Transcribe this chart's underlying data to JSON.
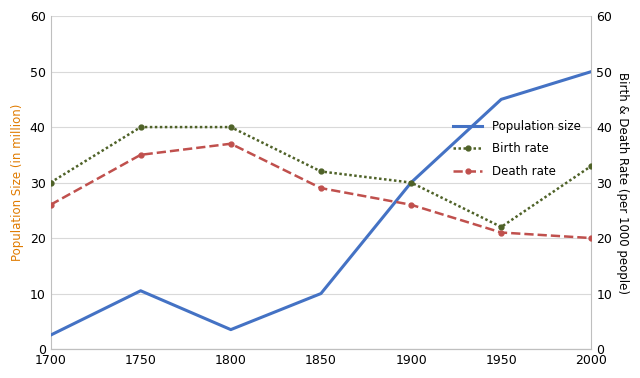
{
  "years": [
    1700,
    1750,
    1800,
    1850,
    1900,
    1950,
    2000
  ],
  "population": [
    2.5,
    10.5,
    3.5,
    10,
    30,
    45,
    50
  ],
  "birth_rate": [
    30,
    40,
    40,
    32,
    30,
    22,
    33
  ],
  "death_rate": [
    26,
    35,
    37,
    29,
    26,
    21,
    20
  ],
  "pop_color": "#4472c4",
  "birth_color": "#4f6228",
  "death_color": "#c0504d",
  "ylabel_left_color": "#e07b00",
  "ylabel_right_color": "#000000",
  "ylabel_left": "Population Size (in million)",
  "ylabel_right": "Birth & Death Rate (per 1000 people)",
  "ylim": [
    0,
    60
  ],
  "yticks": [
    0,
    10,
    20,
    30,
    40,
    50,
    60
  ],
  "legend_pop": "Population size",
  "legend_birth": "Birth rate",
  "legend_death": "Death rate",
  "bg_color": "#ffffff",
  "grid_color": "#d9d9d9"
}
